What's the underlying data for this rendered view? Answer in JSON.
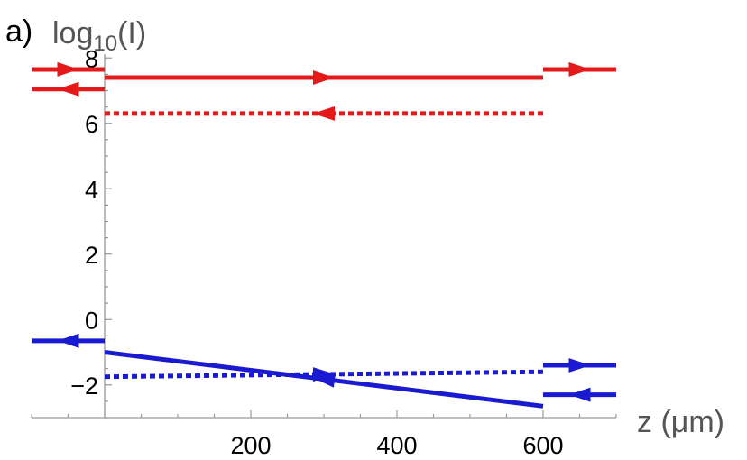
{
  "chart_data": {
    "type": "line",
    "panel_label": "a)",
    "title": "",
    "ylabel_main": "log",
    "ylabel_sub": "10",
    "ylabel_suffix": "(I)",
    "xlabel": "z (μm)",
    "xlim": [
      -100,
      700
    ],
    "ylim": [
      -3,
      8.2
    ],
    "x_ticks": [
      {
        "value": 200,
        "label": "200"
      },
      {
        "value": 400,
        "label": "400"
      },
      {
        "value": 600,
        "label": "600"
      }
    ],
    "y_ticks": [
      {
        "value": 8,
        "label": "8"
      },
      {
        "value": 6,
        "label": "6"
      },
      {
        "value": 4,
        "label": "4"
      },
      {
        "value": 2,
        "label": "2"
      },
      {
        "value": 0,
        "label": "0"
      },
      {
        "value": -2,
        "label": "−2"
      }
    ],
    "colors": {
      "red": "#e41a1a",
      "blue": "#1a1ad0",
      "axis": "#999999"
    },
    "series": [
      {
        "color": "red",
        "style": "solid",
        "arrow": "right",
        "x": [
          -100,
          0
        ],
        "y": [
          7.65,
          7.65
        ]
      },
      {
        "color": "red",
        "style": "solid",
        "arrow": "left",
        "x": [
          -100,
          0
        ],
        "y": [
          7.05,
          7.05
        ]
      },
      {
        "color": "red",
        "style": "solid",
        "arrow": "right",
        "x": [
          0,
          600
        ],
        "y": [
          7.4,
          7.4
        ]
      },
      {
        "color": "red",
        "style": "dotted",
        "arrow": "left",
        "x": [
          0,
          600
        ],
        "y": [
          6.3,
          6.3
        ]
      },
      {
        "color": "red",
        "style": "solid",
        "arrow": "right",
        "x": [
          600,
          700
        ],
        "y": [
          7.65,
          7.65
        ]
      },
      {
        "color": "blue",
        "style": "solid",
        "arrow": "left",
        "x": [
          -100,
          0
        ],
        "y": [
          -0.65,
          -0.65
        ]
      },
      {
        "color": "blue",
        "style": "solid",
        "arrow": "left",
        "x": [
          0,
          600
        ],
        "y": [
          -1.0,
          -2.65
        ]
      },
      {
        "color": "blue",
        "style": "dotted",
        "arrow": "right",
        "x": [
          0,
          600
        ],
        "y": [
          -1.75,
          -1.6
        ]
      },
      {
        "color": "blue",
        "style": "solid",
        "arrow": "right",
        "x": [
          600,
          700
        ],
        "y": [
          -1.4,
          -1.4
        ]
      },
      {
        "color": "blue",
        "style": "solid",
        "arrow": "left",
        "x": [
          600,
          700
        ],
        "y": [
          -2.3,
          -2.3
        ]
      }
    ]
  }
}
